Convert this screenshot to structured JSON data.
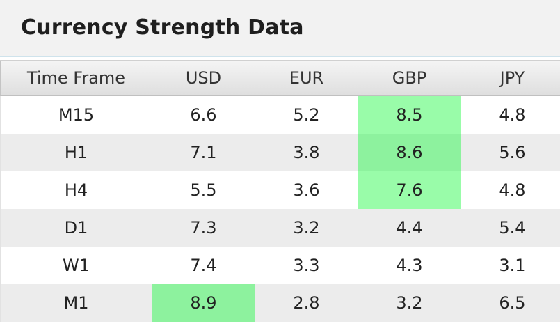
{
  "window": {
    "title": "Currency Strength Data"
  },
  "table": {
    "columns": [
      "Time Frame",
      "USD",
      "EUR",
      "GBP",
      "JPY"
    ],
    "rows": [
      {
        "tf": "M15",
        "usd": "6.6",
        "eur": "5.2",
        "gbp": "8.5",
        "jpy": "4.8",
        "highlight": "gbp"
      },
      {
        "tf": "H1",
        "usd": "7.1",
        "eur": "3.8",
        "gbp": "8.6",
        "jpy": "5.6",
        "highlight": "gbp"
      },
      {
        "tf": "H4",
        "usd": "5.5",
        "eur": "3.6",
        "gbp": "7.6",
        "jpy": "4.8",
        "highlight": "gbp"
      },
      {
        "tf": "D1",
        "usd": "7.3",
        "eur": "3.2",
        "gbp": "4.4",
        "jpy": "5.4",
        "highlight": ""
      },
      {
        "tf": "W1",
        "usd": "7.4",
        "eur": "3.3",
        "gbp": "4.3",
        "jpy": "3.1",
        "highlight": ""
      },
      {
        "tf": "M1",
        "usd": "8.9",
        "eur": "2.8",
        "gbp": "3.2",
        "jpy": "6.5",
        "highlight": "usd"
      }
    ],
    "highlight_color": "#99fca9"
  }
}
